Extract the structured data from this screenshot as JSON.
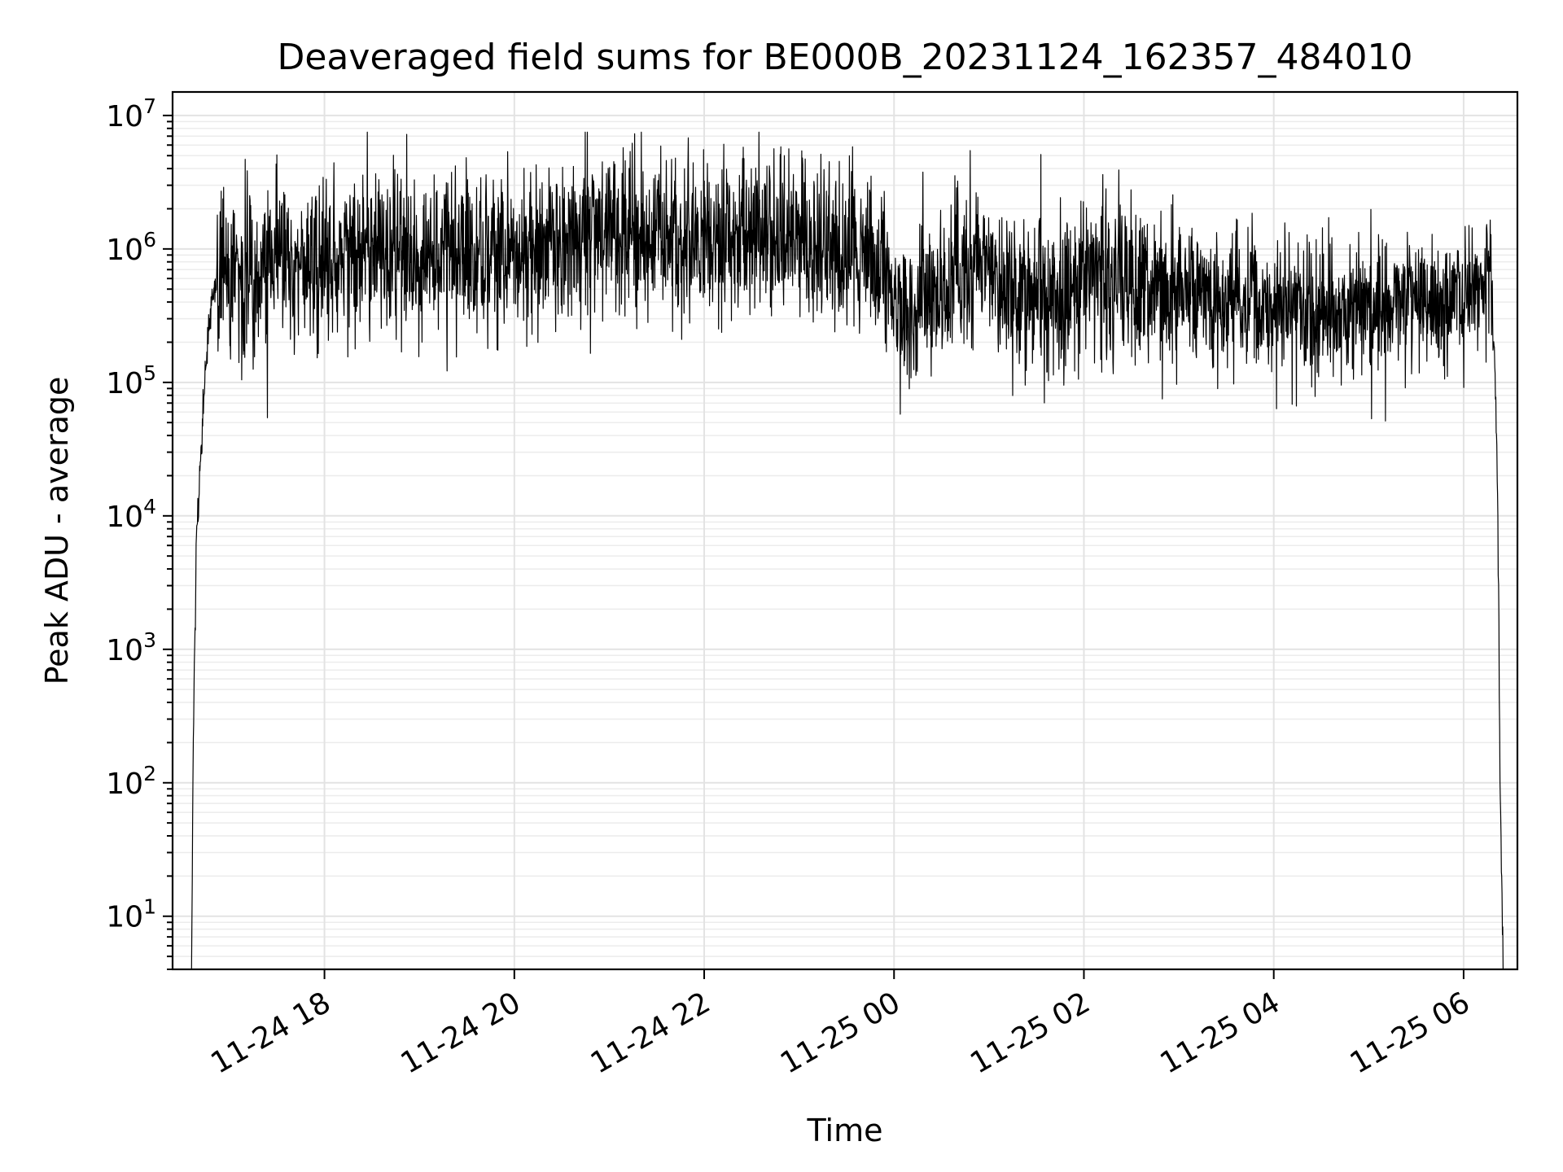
{
  "chart_data": {
    "type": "line",
    "title": "Deaveraged field sums for BE000B_20231124_162357_484010",
    "xlabel": "Time",
    "ylabel": "Peak ADU - average",
    "yscale": "log",
    "grid": "both major and minor",
    "colors": {
      "line": "#000000",
      "grid": "#e3e3e3"
    },
    "xlim": [
      "2023-11-24 16:24",
      "2023-11-25 06:34"
    ],
    "ylim": [
      4,
      15000000
    ],
    "x_ticks": [
      "2023-11-24 18:00",
      "2023-11-24 20:00",
      "2023-11-24 22:00",
      "2023-11-25 00:00",
      "2023-11-25 02:00",
      "2023-11-25 04:00",
      "2023-11-25 06:00"
    ],
    "x_tick_labels": [
      "11-24 18",
      "11-24 20",
      "11-24 22",
      "11-25 00",
      "11-25 02",
      "11-25 04",
      "11-25 06"
    ],
    "y_tick_labels": [
      {
        "base": "10",
        "exp": "1"
      },
      {
        "base": "10",
        "exp": "2"
      },
      {
        "base": "10",
        "exp": "3"
      },
      {
        "base": "10",
        "exp": "4"
      },
      {
        "base": "10",
        "exp": "5"
      },
      {
        "base": "10",
        "exp": "6"
      },
      {
        "base": "10",
        "exp": "7"
      }
    ],
    "series": [
      {
        "x": [
          "2023-11-24 16:36",
          "2023-11-24 16:37",
          "2023-11-24 16:38",
          "2023-11-24 16:39",
          "2023-11-24 16:40",
          "2023-11-24 16:42",
          "2023-11-24 16:44",
          "2023-11-24 16:46",
          "2023-11-24 16:48",
          "2023-11-24 16:50",
          "2023-11-24 16:53",
          "2023-11-24 16:56",
          "2023-11-24 17:00",
          "2023-11-24 17:05",
          "2023-11-24 17:10",
          "2023-11-24 17:20",
          "2023-11-24 17:30",
          "2023-11-24 17:40",
          "2023-11-24 18:00",
          "2023-11-24 18:20",
          "2023-11-24 18:40",
          "2023-11-24 19:00",
          "2023-11-24 19:20",
          "2023-11-24 19:40",
          "2023-11-24 20:00",
          "2023-11-24 20:20",
          "2023-11-24 20:40",
          "2023-11-24 21:00",
          "2023-11-24 21:20",
          "2023-11-24 21:40",
          "2023-11-24 22:00",
          "2023-11-24 22:20",
          "2023-11-24 22:40",
          "2023-11-24 23:00",
          "2023-11-24 23:20",
          "2023-11-24 23:40",
          "2023-11-24 23:55",
          "2023-11-25 00:00",
          "2023-11-25 00:10",
          "2023-11-25 00:20",
          "2023-11-25 00:40",
          "2023-11-25 01:00",
          "2023-11-25 01:20",
          "2023-11-25 01:40",
          "2023-11-25 02:00",
          "2023-11-25 02:20",
          "2023-11-25 02:40",
          "2023-11-25 03:00",
          "2023-11-25 03:20",
          "2023-11-25 03:40",
          "2023-11-25 04:00",
          "2023-11-25 04:20",
          "2023-11-25 04:40",
          "2023-11-25 05:00",
          "2023-11-25 05:20",
          "2023-11-25 05:40",
          "2023-11-25 06:00",
          "2023-11-25 06:10",
          "2023-11-25 06:15",
          "2023-11-25 06:18",
          "2023-11-25 06:20",
          "2023-11-25 06:21",
          "2023-11-25 06:22",
          "2023-11-25 06:23",
          "2023-11-25 06:25"
        ],
        "values": [
          4,
          160,
          1200,
          7500,
          10000,
          30000,
          80000,
          200000,
          400000,
          500000,
          550000,
          600000,
          650000,
          650000,
          600000,
          600000,
          650000,
          700000,
          800000,
          900000,
          900000,
          900000,
          900000,
          900000,
          1000000,
          1050000,
          1200000,
          1400000,
          1300000,
          1200000,
          1200000,
          1300000,
          1300000,
          1200000,
          1000000,
          800000,
          600000,
          400000,
          350000,
          400000,
          700000,
          700000,
          500000,
          500000,
          600000,
          600000,
          500000,
          450000,
          400000,
          400000,
          380000,
          370000,
          360000,
          360000,
          380000,
          400000,
          450000,
          550000,
          700000,
          500000,
          100000,
          30000,
          4000,
          100,
          4
        ]
      }
    ],
    "noise_envelope": {
      "description": "High-frequency fluctuation around the series; peaks up to ~7e6 near 11-24 21, troughs down to ~5e4",
      "max": 7500000,
      "min": 45000
    }
  }
}
